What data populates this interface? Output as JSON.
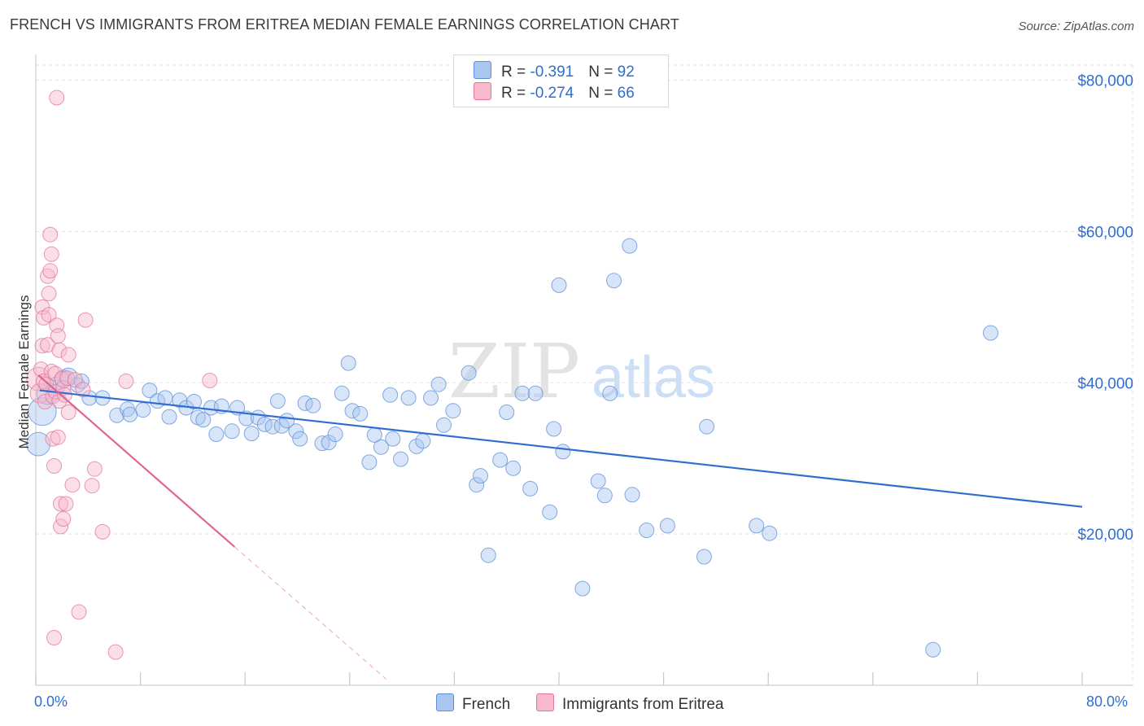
{
  "title": "FRENCH VS IMMIGRANTS FROM ERITREA MEDIAN FEMALE EARNINGS CORRELATION CHART",
  "source": "Source: ZipAtlas.com",
  "watermark": {
    "zip": "ZIP",
    "atlas": "atlas"
  },
  "legend": {
    "rows": [
      {
        "r_label": "R = ",
        "r_value": "-0.391",
        "n_label": "N = ",
        "n_value": "92",
        "color": "#a9c6f0",
        "border": "#5b8fd9"
      },
      {
        "r_label": "R = ",
        "r_value": "-0.274",
        "n_label": "N = ",
        "n_value": "66",
        "color": "#f7b9cc",
        "border": "#e37599"
      }
    ]
  },
  "bottom_legend": [
    {
      "label": "French",
      "color": "#a9c6f0",
      "border": "#5b8fd9"
    },
    {
      "label": "Immigrants from Eritrea",
      "color": "#f7b9cc",
      "border": "#e37599"
    }
  ],
  "chart_data": {
    "type": "scatter",
    "title": "FRENCH VS IMMIGRANTS FROM ERITREA MEDIAN FEMALE EARNINGS CORRELATION CHART",
    "xlabel": "",
    "ylabel": "Median Female Earnings",
    "xlim": [
      0,
      80
    ],
    "ylim": [
      0,
      82000
    ],
    "x_tick_labels": {
      "left": "0.0%",
      "right": "80.0%"
    },
    "y_ticks": [
      {
        "value": 20000,
        "label": "$20,000"
      },
      {
        "value": 40000,
        "label": "$40,000"
      },
      {
        "value": 60000,
        "label": "$60,000"
      },
      {
        "value": 80000,
        "label": "$80,000"
      }
    ],
    "grid": true,
    "series": [
      {
        "name": "French",
        "color": "#a9c6f0",
        "edge": "#5b8fd9",
        "line_color": "#2f6ecf",
        "trend": {
          "x0": 0.3,
          "y0": 39000,
          "x1": 80,
          "y1": 23600
        },
        "points": [
          [
            0.2,
            31900,
            1.6
          ],
          [
            0.5,
            36200,
            1.9
          ],
          [
            0.9,
            38600,
            1.5
          ],
          [
            1.5,
            39500,
            1.3
          ],
          [
            2.1,
            40500,
            1.2
          ],
          [
            2.5,
            40800,
            1.2
          ],
          [
            3.2,
            39700,
            1.0
          ],
          [
            3.5,
            40200,
            1.0
          ],
          [
            4.1,
            38000,
            1.0
          ],
          [
            5.1,
            38000,
            1.0
          ],
          [
            6.2,
            35700,
            1.0
          ],
          [
            7.0,
            36500,
            1.0
          ],
          [
            7.2,
            35800,
            1.0
          ],
          [
            8.2,
            36400,
            1.0
          ],
          [
            8.7,
            39000,
            1.0
          ],
          [
            9.3,
            37600,
            1.0
          ],
          [
            9.9,
            38000,
            1.0
          ],
          [
            10.2,
            35500,
            1.0
          ],
          [
            11.0,
            37700,
            1.0
          ],
          [
            11.5,
            36700,
            1.0
          ],
          [
            12.1,
            37500,
            1.0
          ],
          [
            12.4,
            35400,
            1.0
          ],
          [
            12.8,
            35100,
            1.0
          ],
          [
            13.4,
            36700,
            1.0
          ],
          [
            13.8,
            33200,
            1.0
          ],
          [
            14.2,
            36900,
            1.0
          ],
          [
            15.0,
            33600,
            1.0
          ],
          [
            15.4,
            36700,
            1.0
          ],
          [
            16.1,
            35300,
            1.0
          ],
          [
            16.5,
            33300,
            1.0
          ],
          [
            17.0,
            35400,
            1.0
          ],
          [
            17.5,
            34500,
            1.0
          ],
          [
            18.1,
            34200,
            1.0
          ],
          [
            18.5,
            37600,
            1.0
          ],
          [
            18.8,
            34300,
            1.0
          ],
          [
            19.2,
            35000,
            1.0
          ],
          [
            19.9,
            33600,
            1.0
          ],
          [
            20.2,
            32600,
            1.0
          ],
          [
            20.6,
            37300,
            1.0
          ],
          [
            21.2,
            37000,
            1.0
          ],
          [
            21.9,
            32000,
            1.0
          ],
          [
            22.4,
            32100,
            1.0
          ],
          [
            22.9,
            33200,
            1.0
          ],
          [
            23.4,
            38600,
            1.0
          ],
          [
            23.9,
            42600,
            1.0
          ],
          [
            24.2,
            36300,
            1.0
          ],
          [
            24.8,
            35900,
            1.0
          ],
          [
            25.5,
            29500,
            1.0
          ],
          [
            25.9,
            33100,
            1.0
          ],
          [
            26.4,
            31500,
            1.0
          ],
          [
            27.1,
            38400,
            1.0
          ],
          [
            27.3,
            32600,
            1.0
          ],
          [
            27.9,
            29900,
            1.0
          ],
          [
            28.5,
            38000,
            1.0
          ],
          [
            29.1,
            31600,
            1.0
          ],
          [
            29.6,
            32300,
            1.0
          ],
          [
            30.2,
            38000,
            1.0
          ],
          [
            30.8,
            39800,
            1.0
          ],
          [
            31.2,
            34400,
            1.0
          ],
          [
            31.9,
            36300,
            1.0
          ],
          [
            33.1,
            41300,
            1.0
          ],
          [
            33.7,
            26500,
            1.0
          ],
          [
            34.0,
            27700,
            1.0
          ],
          [
            34.6,
            17200,
            1.0
          ],
          [
            35.5,
            29800,
            1.0
          ],
          [
            36.0,
            36100,
            1.0
          ],
          [
            36.5,
            28700,
            1.0
          ],
          [
            37.2,
            38600,
            1.0
          ],
          [
            37.8,
            26000,
            1.0
          ],
          [
            38.2,
            38600,
            1.0
          ],
          [
            39.3,
            22900,
            1.0
          ],
          [
            39.6,
            33900,
            1.0
          ],
          [
            40.0,
            52900,
            1.0
          ],
          [
            40.3,
            30900,
            1.0
          ],
          [
            41.8,
            12800,
            1.0
          ],
          [
            43.0,
            27000,
            1.0
          ],
          [
            43.5,
            25100,
            1.0
          ],
          [
            43.9,
            38600,
            1.0
          ],
          [
            44.2,
            53500,
            1.0
          ],
          [
            45.4,
            58100,
            1.0
          ],
          [
            45.6,
            25200,
            1.0
          ],
          [
            46.7,
            20500,
            1.0
          ],
          [
            48.3,
            21100,
            1.0
          ],
          [
            51.1,
            17000,
            1.0
          ],
          [
            51.3,
            34200,
            1.0
          ],
          [
            55.1,
            21100,
            1.0
          ],
          [
            56.1,
            20100,
            1.0
          ],
          [
            68.6,
            4700,
            1.0
          ],
          [
            73.0,
            46600,
            1.0
          ]
        ]
      },
      {
        "name": "Immigrants from Eritrea",
        "color": "#f7b9cc",
        "edge": "#e37599",
        "line_color": "#e0668f",
        "trend": {
          "x0": 0.2,
          "y0": 41000,
          "x1": 15.2,
          "y1": 18300
        },
        "trend_dashed": {
          "x0": 15.2,
          "y0": 18300,
          "x1": 26.8,
          "y1": 800
        },
        "points": [
          [
            0.2,
            40500,
            1.6
          ],
          [
            0.3,
            38600,
            1.3
          ],
          [
            0.4,
            41800,
            1.0
          ],
          [
            0.5,
            44900,
            1.0
          ],
          [
            0.5,
            50000,
            1.0
          ],
          [
            0.6,
            48600,
            1.0
          ],
          [
            0.6,
            40200,
            1.0
          ],
          [
            0.7,
            37500,
            1.0
          ],
          [
            0.8,
            39800,
            1.0
          ],
          [
            0.9,
            45000,
            1.0
          ],
          [
            0.9,
            54100,
            1.0
          ],
          [
            1.0,
            51800,
            1.0
          ],
          [
            1.0,
            49000,
            1.0
          ],
          [
            1.1,
            59600,
            1.0
          ],
          [
            1.1,
            54800,
            1.0
          ],
          [
            1.2,
            57000,
            1.0
          ],
          [
            1.2,
            41500,
            1.0
          ],
          [
            1.3,
            38200,
            1.0
          ],
          [
            1.3,
            32600,
            1.0
          ],
          [
            1.4,
            29000,
            1.0
          ],
          [
            1.4,
            6300,
            1.0
          ],
          [
            1.5,
            38800,
            1.0
          ],
          [
            1.5,
            41200,
            1.0
          ],
          [
            1.6,
            77700,
            1.0
          ],
          [
            1.6,
            47600,
            1.0
          ],
          [
            1.7,
            46200,
            1.0
          ],
          [
            1.7,
            32800,
            1.0
          ],
          [
            1.8,
            44300,
            1.0
          ],
          [
            1.8,
            37600,
            1.0
          ],
          [
            1.9,
            24000,
            1.0
          ],
          [
            1.9,
            21000,
            1.0
          ],
          [
            2.0,
            40500,
            1.0
          ],
          [
            2.1,
            39300,
            1.0
          ],
          [
            2.1,
            22000,
            1.0
          ],
          [
            2.2,
            38400,
            1.0
          ],
          [
            2.3,
            24000,
            1.0
          ],
          [
            2.4,
            40600,
            1.0
          ],
          [
            2.5,
            43700,
            1.0
          ],
          [
            2.5,
            36100,
            1.0
          ],
          [
            2.8,
            26500,
            1.0
          ],
          [
            3.0,
            40400,
            1.0
          ],
          [
            3.3,
            9700,
            1.0
          ],
          [
            3.6,
            39100,
            1.0
          ],
          [
            3.8,
            48300,
            1.0
          ],
          [
            4.3,
            26400,
            1.0
          ],
          [
            4.5,
            28600,
            1.0
          ],
          [
            5.1,
            20300,
            1.0
          ],
          [
            6.1,
            4400,
            1.0
          ],
          [
            6.9,
            40200,
            1.0
          ],
          [
            13.3,
            40300,
            1.0
          ]
        ]
      }
    ]
  }
}
